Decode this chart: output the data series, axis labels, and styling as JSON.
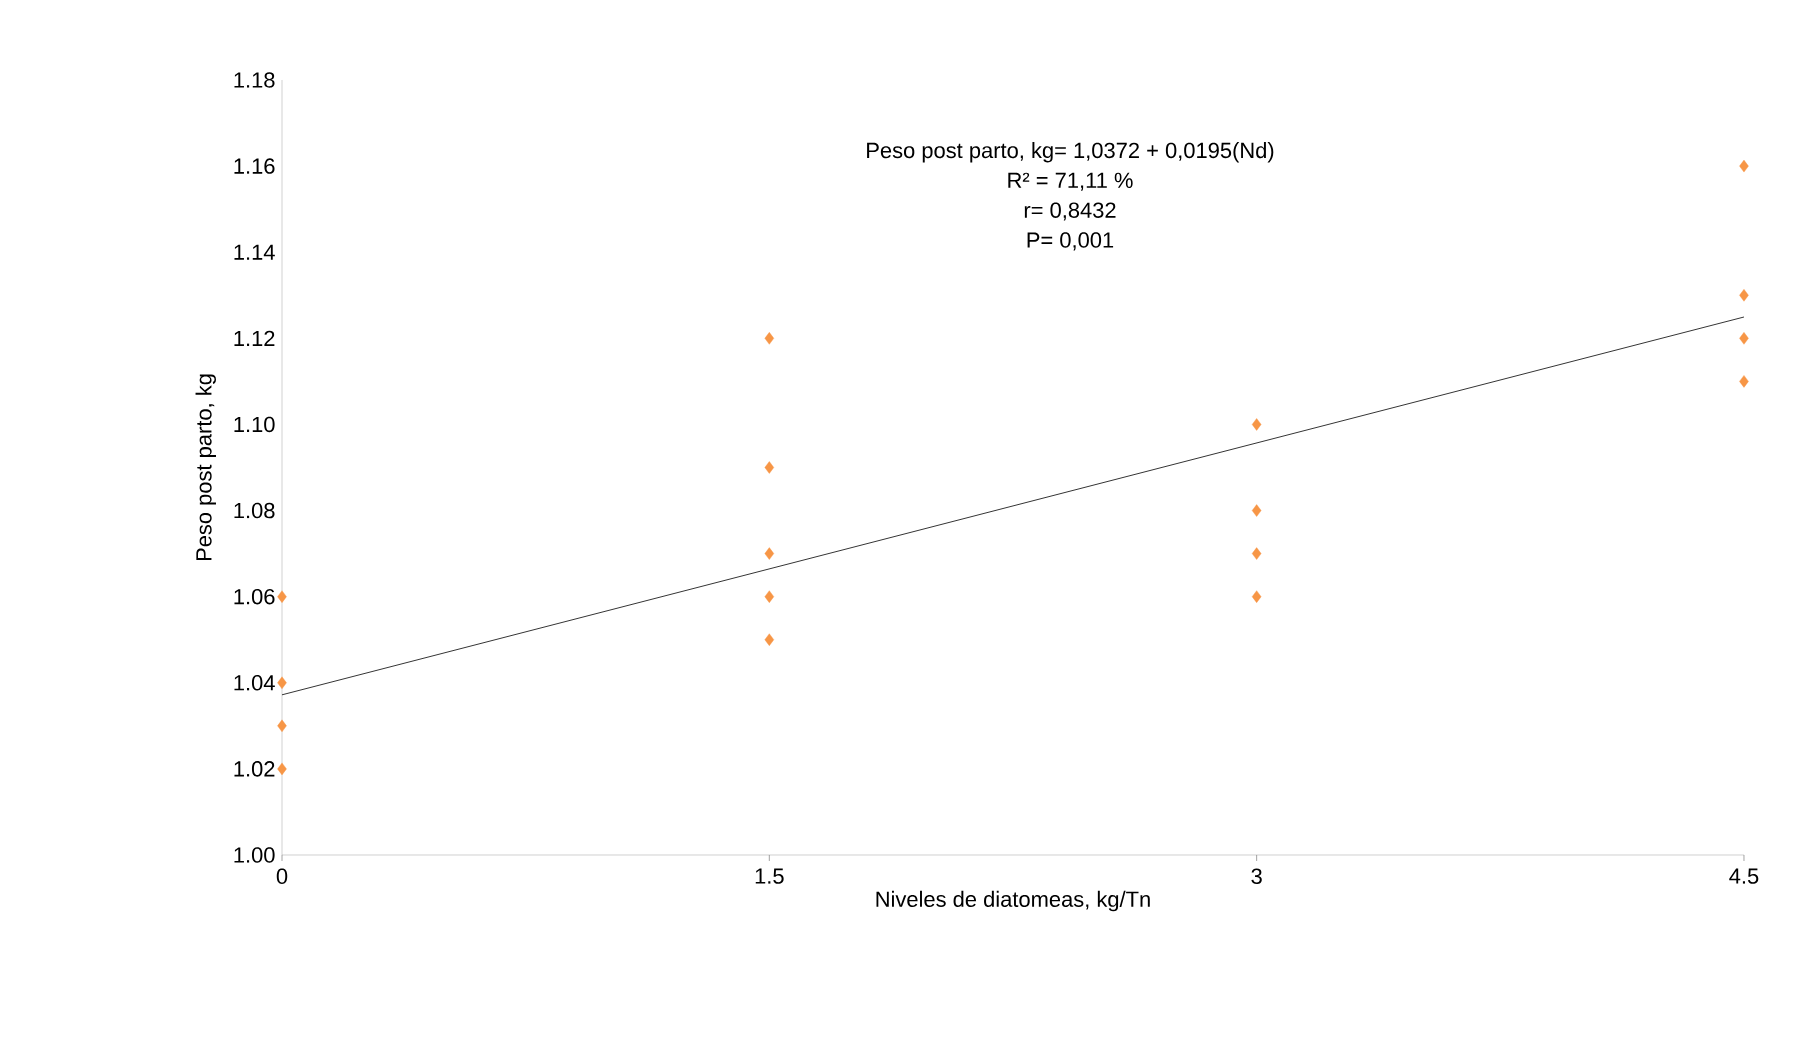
{
  "chart_data": {
    "type": "scatter",
    "xlabel": "Niveles de diatomeas, kg/Tn",
    "ylabel": "Peso post parto, kg",
    "annotations": [
      "Peso post parto, kg=  1,0372 + 0,0195(Nd)",
      "R² = 71,11 %",
      "r= 0,8432",
      "P= 0,001"
    ],
    "marker": "diamond",
    "series": [
      {
        "color": "#f79646",
        "x": [
          0,
          0,
          0,
          0,
          1.5,
          1.5,
          1.5,
          1.5,
          1.5,
          3,
          3,
          3,
          3,
          4.5,
          4.5,
          4.5,
          4.5
        ],
        "values": [
          1.06,
          1.04,
          1.03,
          1.02,
          1.12,
          1.09,
          1.07,
          1.06,
          1.05,
          1.1,
          1.08,
          1.07,
          1.06,
          1.16,
          1.13,
          1.12,
          1.11
        ]
      },
      {
        "type": "line",
        "marker": "none",
        "line_style": "solid",
        "color": "#000000",
        "x": [
          0,
          4.5
        ],
        "values": [
          1.0372,
          1.12495
        ]
      }
    ],
    "xlim": [
      0,
      4.5
    ],
    "ylim": [
      1.0,
      1.18
    ],
    "xticks": [
      0,
      1.5,
      3,
      4.5
    ],
    "yticks": [
      {
        "value": 1.0,
        "label": "1.00"
      },
      {
        "value": 1.02,
        "label": "1.02"
      },
      {
        "value": 1.04,
        "label": "1.04"
      },
      {
        "value": 1.06,
        "label": "1.06"
      },
      {
        "value": 1.08,
        "label": "1.08"
      },
      {
        "value": 1.1,
        "label": "1.10"
      },
      {
        "value": 1.12,
        "label": "1.12"
      },
      {
        "value": 1.14,
        "label": "1.14"
      },
      {
        "value": 1.16,
        "label": "1.16"
      },
      {
        "value": 1.18,
        "label": "1.18"
      }
    ]
  }
}
